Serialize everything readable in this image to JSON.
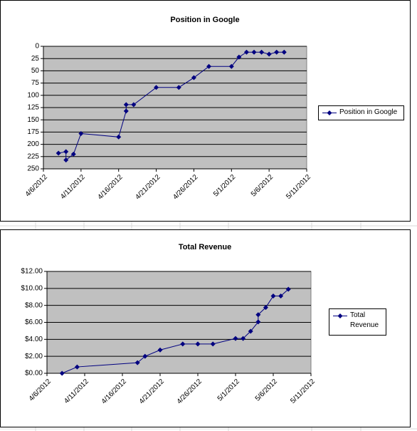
{
  "chart_data": [
    {
      "type": "line",
      "title": "Position in Google",
      "y_reversed": true,
      "grid": true,
      "x": [
        "4/8/2012",
        "4/9/2012",
        "4/9/2012",
        "4/10/2012",
        "4/11/2012",
        "4/16/2012",
        "4/17/2012",
        "4/17/2012",
        "4/18/2012",
        "4/21/2012",
        "4/24/2012",
        "4/26/2012",
        "4/28/2012",
        "5/1/2012",
        "5/2/2012",
        "5/3/2012",
        "5/4/2012",
        "5/5/2012",
        "5/6/2012",
        "5/7/2012",
        "5/8/2012"
      ],
      "series": [
        {
          "name": "Position in Google",
          "color": "#000080",
          "values": [
            218,
            215,
            232,
            220,
            178,
            185,
            132,
            119,
            119,
            84,
            84,
            64,
            41,
            41,
            22,
            12,
            12,
            12,
            16,
            12,
            12
          ]
        }
      ],
      "xlim": [
        "4/6/2012",
        "5/11/2012"
      ],
      "xticks": [
        "4/6/2012",
        "4/11/2012",
        "4/16/2012",
        "4/21/2012",
        "4/26/2012",
        "5/1/2012",
        "5/6/2012",
        "5/11/2012"
      ],
      "ylim": [
        0,
        250
      ],
      "yticks": [
        0,
        25,
        50,
        75,
        100,
        125,
        150,
        175,
        200,
        225,
        250
      ]
    },
    {
      "type": "line",
      "title": "Total Revenue",
      "y_reversed": false,
      "grid": true,
      "x": [
        "4/8/2012",
        "4/10/2012",
        "4/18/2012",
        "4/19/2012",
        "4/21/2012",
        "4/24/2012",
        "4/26/2012",
        "4/28/2012",
        "5/1/2012",
        "5/2/2012",
        "5/3/2012",
        "5/4/2012",
        "5/4/2012",
        "5/5/2012",
        "5/6/2012",
        "5/7/2012",
        "5/8/2012"
      ],
      "series": [
        {
          "name": "Total Revenue",
          "color": "#000080",
          "values": [
            0,
            0.75,
            1.25,
            2.0,
            2.75,
            3.45,
            3.45,
            3.45,
            4.1,
            4.1,
            4.95,
            6.05,
            6.9,
            7.75,
            9.1,
            9.1,
            9.9
          ]
        }
      ],
      "xlim": [
        "4/6/2012",
        "5/11/2012"
      ],
      "xticks": [
        "4/6/2012",
        "4/11/2012",
        "4/16/2012",
        "4/21/2012",
        "4/26/2012",
        "5/1/2012",
        "5/6/2012",
        "5/11/2012"
      ],
      "ylim": [
        0,
        12
      ],
      "yticks": [
        {
          "value": 0,
          "label": "$0.00"
        },
        {
          "value": 2,
          "label": "$2.00"
        },
        {
          "value": 4,
          "label": "$4.00"
        },
        {
          "value": 6,
          "label": "$6.00"
        },
        {
          "value": 8,
          "label": "$8.00"
        },
        {
          "value": 10,
          "label": "$10.00"
        },
        {
          "value": 12,
          "label": "$12.00"
        }
      ]
    }
  ]
}
